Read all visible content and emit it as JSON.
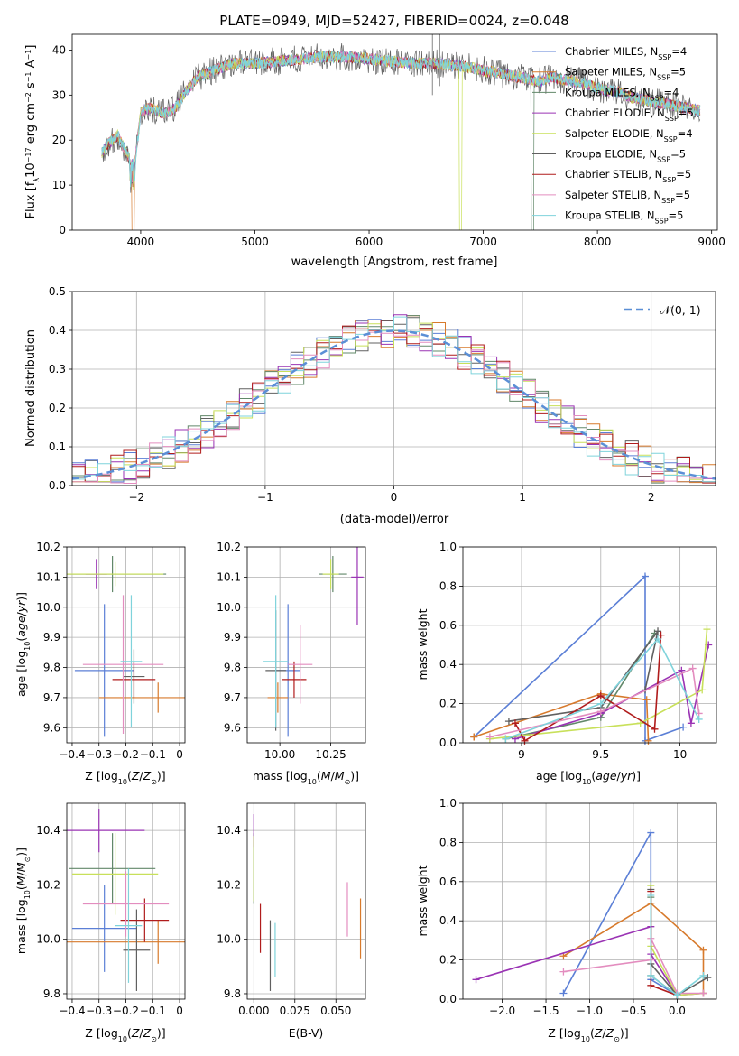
{
  "colors": [
    "#5b7fd6",
    "#d77a2c",
    "#62886a",
    "#9a33b4",
    "#c8e05a",
    "#606060",
    "#b01c1c",
    "#e38dbf",
    "#7fd3db"
  ],
  "chart_data": [
    {
      "id": "spectrum",
      "type": "line",
      "title": "PLATE=0949, MJD=52427, FIBERID=0024, z=0.048",
      "xlabel": "wavelength [Angstrom, rest frame]",
      "ylabel": "Flux [f_λ10^-17 erg cm^-2 s^-1 A^-1]",
      "xlim": [
        3400,
        9050
      ],
      "ylim": [
        0,
        43.5
      ],
      "xticks": [
        4000,
        5000,
        6000,
        7000,
        8000,
        9000
      ],
      "yticks": [
        0,
        10,
        20,
        30,
        40
      ],
      "grid": false,
      "legend_position": "top-right",
      "series_names": [
        "Chabrier MILES, N_SSP=4",
        "Salpeter MILES, N_SSP=5",
        "Kroupa MILES, N_SSP=4",
        "Chabrier ELODIE, N_SSP=5",
        "Salpeter ELODIE, N_SSP=4",
        "Kroupa ELODIE, N_SSP=5",
        "Chabrier STELIB, N_SSP=5",
        "Salpeter STELIB, N_SSP=5",
        "Kroupa STELIB, N_SSP=5"
      ],
      "continuum_x": [
        3660,
        3700,
        3800,
        3900,
        3950,
        4000,
        4050,
        4100,
        4200,
        4300,
        4400,
        4500,
        4600,
        4700,
        4800,
        4900,
        5000,
        5200,
        5400,
        5600,
        5800,
        6000,
        6200,
        6400,
        6600,
        6800,
        7000,
        7200,
        7300,
        7400,
        7500,
        7600,
        7700,
        7800,
        7900,
        8000,
        8100,
        8200,
        8300,
        8400,
        8500,
        8600,
        8700,
        8800,
        8900
      ],
      "continuum_y": [
        17,
        19,
        21,
        16,
        15,
        26,
        27,
        27,
        26,
        27,
        31,
        34,
        35,
        36,
        37,
        37,
        37,
        37.5,
        38,
        38.5,
        38.5,
        38,
        37.5,
        37,
        37,
        36.5,
        35.5,
        34.5,
        34,
        33.5,
        33,
        34,
        33.5,
        33,
        32.5,
        31.5,
        31,
        30.5,
        29.5,
        29,
        28.5,
        28,
        27.5,
        27,
        26.5
      ],
      "drops": [
        {
          "series": 1,
          "x": 3920
        },
        {
          "series": 4,
          "x": 6790
        },
        {
          "series": 2,
          "x": 7420
        }
      ]
    },
    {
      "id": "residuals",
      "type": "line",
      "xlabel": "(data-model)/error",
      "ylabel": "Normed distribution",
      "xlim": [
        -2.5,
        2.5
      ],
      "ylim": [
        0,
        0.5
      ],
      "xticks": [
        -2,
        -1,
        0,
        1,
        2
      ],
      "yticks": [
        0.0,
        0.1,
        0.2,
        0.3,
        0.4,
        0.5
      ],
      "grid": true,
      "legend": "𝒩(0, 1)",
      "legend_position": "top-right",
      "bin_width": 0.1
    },
    {
      "id": "age-vs-z",
      "type": "scatter",
      "xlabel": "Z [log10(Z/Z☉)]",
      "ylabel": "age  [log10(age/yr)]",
      "xlim": [
        -0.42,
        0.02
      ],
      "ylim": [
        9.55,
        10.2
      ],
      "xticks": [
        -0.4,
        -0.3,
        -0.2,
        -0.1,
        0.0
      ],
      "yticks": [
        9.6,
        9.7,
        9.8,
        9.9,
        10.0,
        10.1,
        10.2
      ],
      "grid": true,
      "points": [
        {
          "c": 0,
          "x": -0.28,
          "xerr": 0.11,
          "y": 9.79,
          "yerr": 0.22
        },
        {
          "c": 1,
          "x": -0.08,
          "xerr": 0.22,
          "y": 9.7,
          "yerr": 0.05
        },
        {
          "c": 2,
          "x": -0.25,
          "xerr": 0.2,
          "y": 10.11,
          "yerr": 0.06
        },
        {
          "c": 3,
          "x": -0.31,
          "xerr": 0.04,
          "y": 10.11,
          "yerr": 0.05
        },
        {
          "c": 4,
          "x": -0.24,
          "xerr": 0.18,
          "y": 10.11,
          "yerr": 0.04
        },
        {
          "c": 5,
          "x": -0.17,
          "xerr": 0.04,
          "y": 9.77,
          "yerr": 0.09
        },
        {
          "c": 6,
          "x": -0.17,
          "xerr": 0.08,
          "y": 9.76,
          "yerr": 0.06
        },
        {
          "c": 7,
          "x": -0.21,
          "xerr": 0.15,
          "y": 9.81,
          "yerr": 0.23
        },
        {
          "c": 8,
          "x": -0.18,
          "xerr": 0.04,
          "y": 9.82,
          "yerr": 0.22
        }
      ]
    },
    {
      "id": "age-vs-mass",
      "type": "scatter",
      "xlabel": "mass [log10(M/M☉)]",
      "xlim": [
        9.84,
        10.42
      ],
      "ylim": [
        9.55,
        10.2
      ],
      "xticks": [
        10.0,
        10.25
      ],
      "xtick_labels": [
        "10.00",
        "10.25"
      ],
      "yticks": [
        9.6,
        9.7,
        9.8,
        9.9,
        10.0,
        10.1,
        10.2
      ],
      "grid": true,
      "points": [
        {
          "c": 0,
          "x": 10.04,
          "xerr": 0.06,
          "y": 9.79,
          "yerr": 0.22
        },
        {
          "c": 1,
          "x": 9.99,
          "xerr": 0.05,
          "y": 9.7,
          "yerr": 0.05
        },
        {
          "c": 2,
          "x": 10.26,
          "xerr": 0.07,
          "y": 10.11,
          "yerr": 0.06
        },
        {
          "c": 3,
          "x": 10.38,
          "xerr": 0.03,
          "y": 10.1,
          "yerr": 0.16
        },
        {
          "c": 4,
          "x": 10.25,
          "xerr": 0.04,
          "y": 10.11,
          "yerr": 0.05
        },
        {
          "c": 5,
          "x": 9.98,
          "xerr": 0.05,
          "y": 9.79,
          "yerr": 0.2
        },
        {
          "c": 6,
          "x": 10.07,
          "xerr": 0.06,
          "y": 9.76,
          "yerr": 0.06
        },
        {
          "c": 7,
          "x": 10.1,
          "xerr": 0.06,
          "y": 9.81,
          "yerr": 0.13
        },
        {
          "c": 8,
          "x": 9.98,
          "xerr": 0.06,
          "y": 9.82,
          "yerr": 0.22
        }
      ]
    },
    {
      "id": "mass-weight-vs-age",
      "type": "line",
      "xlabel": "age  [log10(age/yr)]",
      "ylabel": "mass weight",
      "xlim": [
        8.63,
        10.23
      ],
      "ylim": [
        0,
        1
      ],
      "xticks": [
        9.0,
        9.5,
        10.0
      ],
      "yticks": [
        0.0,
        0.2,
        0.4,
        0.6,
        0.8,
        1.0
      ],
      "grid": true,
      "series": [
        {
          "c": 0,
          "x": [
            8.7,
            9.78,
            9.78,
            10.02
          ],
          "y": [
            0.03,
            0.85,
            0.01,
            0.08
          ]
        },
        {
          "c": 1,
          "x": 8.7,
          "y": 0.03
        },
        {
          "c": 1,
          "x": [
            8.7,
            9.5,
            9.79,
            9.8
          ],
          "y": [
            0.03,
            0.25,
            0.22,
            0.01
          ]
        },
        {
          "c": 2,
          "x": [
            8.9,
            9.5,
            9.84
          ],
          "y": [
            0.02,
            0.13,
            0.56
          ]
        },
        {
          "c": 3,
          "x": [
            8.96,
            9.5,
            10.01,
            10.07,
            10.18
          ],
          "y": [
            0.02,
            0.15,
            0.37,
            0.1,
            0.5
          ]
        },
        {
          "c": 4,
          "x": [
            8.8,
            9.75,
            10.14,
            10.17
          ],
          "y": [
            0.02,
            0.1,
            0.27,
            0.58
          ]
        },
        {
          "c": 5,
          "x": [
            8.92,
            9.5,
            9.86,
            9.78
          ],
          "y": [
            0.11,
            0.18,
            0.57,
            0.27
          ]
        },
        {
          "c": 6,
          "x": [
            8.96,
            9.02,
            9.5,
            9.84,
            9.88
          ],
          "y": [
            0.1,
            0.01,
            0.24,
            0.07,
            0.55
          ]
        },
        {
          "c": 7,
          "x": [
            8.8,
            9.5,
            10.08,
            10.12
          ],
          "y": [
            0.03,
            0.16,
            0.38,
            0.15
          ]
        },
        {
          "c": 8,
          "x": [
            8.9,
            9.5,
            9.86,
            10.12
          ],
          "y": [
            0.02,
            0.2,
            0.53,
            0.12
          ]
        }
      ]
    },
    {
      "id": "mass-vs-z",
      "type": "scatter",
      "xlabel": "Z [log10(Z/Z☉)]",
      "ylabel": "mass [log10(M/M☉)]",
      "xlim": [
        -0.42,
        0.02
      ],
      "ylim": [
        9.78,
        10.5
      ],
      "xticks": [
        -0.4,
        -0.3,
        -0.2,
        -0.1,
        0.0
      ],
      "yticks": [
        9.8,
        10.0,
        10.2,
        10.4
      ],
      "grid": true,
      "points": [
        {
          "c": 0,
          "x": -0.28,
          "xerr": 0.12,
          "y": 10.04,
          "yerr": 0.16
        },
        {
          "c": 1,
          "x": -0.08,
          "xerr": 0.41,
          "y": 9.99,
          "yerr": 0.08
        },
        {
          "c": 2,
          "x": -0.25,
          "xerr": 0.16,
          "y": 10.26,
          "yerr": 0.13
        },
        {
          "c": 3,
          "x": -0.3,
          "xerr": 0.17,
          "y": 10.4,
          "yerr": 0.08
        },
        {
          "c": 4,
          "x": -0.24,
          "xerr": 0.16,
          "y": 10.24,
          "yerr": 0.15
        },
        {
          "c": 5,
          "x": -0.16,
          "xerr": 0.05,
          "y": 9.96,
          "yerr": 0.15
        },
        {
          "c": 6,
          "x": -0.13,
          "xerr": 0.09,
          "y": 10.07,
          "yerr": 0.08
        },
        {
          "c": 7,
          "x": -0.2,
          "xerr": 0.16,
          "y": 10.13,
          "yerr": 0.12
        },
        {
          "c": 8,
          "x": -0.19,
          "xerr": 0.05,
          "y": 10.05,
          "yerr": 0.21
        }
      ]
    },
    {
      "id": "mass-vs-ebv",
      "type": "scatter",
      "xlabel": "E(B-V)",
      "xlim": [
        -0.004,
        0.068
      ],
      "ylim": [
        9.78,
        10.5
      ],
      "xticks": [
        0.0,
        0.025,
        0.05
      ],
      "xtick_labels": [
        "0.000",
        "0.025",
        "0.050"
      ],
      "yticks": [
        9.8,
        10.0,
        10.2,
        10.4
      ],
      "grid": true,
      "points": [
        {
          "c": 0,
          "x": 0.0,
          "xerr": 0,
          "y": 10.04,
          "yerr": 0.0
        },
        {
          "c": 1,
          "x": 0.065,
          "xerr": 0,
          "y": 10.04,
          "yerr": 0.11
        },
        {
          "c": 2,
          "x": 0.0,
          "xerr": 0,
          "y": 10.26,
          "yerr": 0.13
        },
        {
          "c": 3,
          "x": 0.0,
          "xerr": 0,
          "y": 10.4,
          "yerr": 0.06
        },
        {
          "c": 4,
          "x": 0.0,
          "xerr": 0,
          "y": 10.26,
          "yerr": 0.12
        },
        {
          "c": 5,
          "x": 0.01,
          "xerr": 0,
          "y": 9.94,
          "yerr": 0.13
        },
        {
          "c": 6,
          "x": 0.004,
          "xerr": 0,
          "y": 10.04,
          "yerr": 0.09
        },
        {
          "c": 7,
          "x": 0.057,
          "xerr": 0,
          "y": 10.11,
          "yerr": 0.1
        },
        {
          "c": 8,
          "x": 0.013,
          "xerr": 0,
          "y": 9.96,
          "yerr": 0.1
        }
      ]
    },
    {
      "id": "mass-weight-vs-z",
      "type": "line",
      "xlabel": "Z [log10(Z/Z☉)]",
      "ylabel": "mass weight",
      "xlim": [
        -2.45,
        0.45
      ],
      "ylim": [
        0,
        1
      ],
      "xticks": [
        -2.0,
        -1.5,
        -1.0,
        -0.5,
        0.0
      ],
      "xtick_labels": [
        "−2.0",
        "−1.5",
        "−1.0",
        "−0.5",
        "0.0"
      ],
      "yticks": [
        0.0,
        0.2,
        0.4,
        0.6,
        0.8,
        1.0
      ],
      "grid": true,
      "series": [
        {
          "c": 0,
          "x": [
            -1.3,
            -0.3,
            -0.3,
            0.0
          ],
          "y": [
            0.03,
            0.85,
            0.1,
            0.02
          ]
        },
        {
          "c": 1,
          "x": [
            -1.3,
            -0.3,
            0.3,
            0.3
          ],
          "y": [
            0.22,
            0.49,
            0.25,
            0.03
          ]
        },
        {
          "c": 2,
          "x": [
            -0.3,
            -0.3,
            0.0
          ],
          "y": [
            0.52,
            0.12,
            0.02
          ]
        },
        {
          "c": 3,
          "x": [
            -2.3,
            -0.3,
            -0.3,
            0.0,
            0.3
          ],
          "y": [
            0.1,
            0.37,
            0.23,
            0.02,
            0.03
          ]
        },
        {
          "c": 4,
          "x": [
            -0.3,
            -0.3,
            0.0,
            0.3
          ],
          "y": [
            0.58,
            0.27,
            0.02,
            0.03
          ]
        },
        {
          "c": 5,
          "x": [
            -0.3,
            -0.3,
            0.0,
            0.35
          ],
          "y": [
            0.56,
            0.18,
            0.02,
            0.11
          ]
        },
        {
          "c": 6,
          "x": [
            -0.3,
            -0.3,
            0.0
          ],
          "y": [
            0.55,
            0.07,
            0.02
          ]
        },
        {
          "c": 7,
          "x": [
            -1.3,
            -0.3,
            -0.3,
            0.0,
            0.3
          ],
          "y": [
            0.14,
            0.2,
            0.31,
            0.03,
            0.03
          ]
        },
        {
          "c": 8,
          "x": [
            -0.3,
            -0.3,
            0.0,
            0.3
          ],
          "y": [
            0.53,
            0.12,
            0.02,
            0.12
          ]
        }
      ]
    }
  ]
}
